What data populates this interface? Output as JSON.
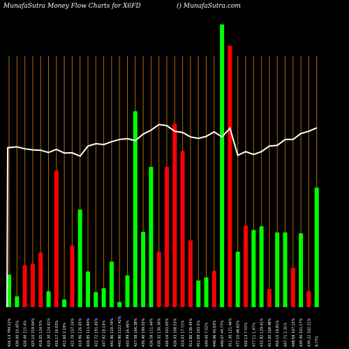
{
  "header": {
    "title": "MunafaSutra  Money Flow  Charts for X6FD",
    "site": "() MunafaSutra.com"
  },
  "chart_data": {
    "type": "bar",
    "title": "MunafaSutra  Money Flow  Charts for X6FD",
    "ylim": [
      0,
      100
    ],
    "grid": true,
    "series": [
      {
        "values": [
          11.5,
          3.8,
          14.8,
          15.4,
          19.3,
          5.6,
          48.3,
          2.7,
          21.7,
          34.5,
          12.6,
          5.3,
          6.7,
          16.1,
          1.8,
          11.2,
          69.3,
          26.6,
          49.6,
          19.6,
          49.6,
          64.8,
          55.2,
          23.6,
          9.4,
          10.5,
          12.8,
          100,
          92.5,
          19.6,
          28.8,
          27.3,
          28.6,
          6.4,
          26.4,
          26.4,
          13.9,
          26.1,
          5.6,
          42.3
        ],
        "colors": [
          "green",
          "green",
          "red",
          "red",
          "red",
          "green",
          "red",
          "green",
          "red",
          "green",
          "green",
          "green",
          "green",
          "green",
          "green",
          "green",
          "green",
          "green",
          "green",
          "red",
          "red",
          "red",
          "red",
          "red",
          "green",
          "green",
          "red",
          "green",
          "red",
          "green",
          "red",
          "green",
          "green",
          "red",
          "green",
          "green",
          "red",
          "green",
          "red",
          "green"
        ]
      },
      {
        "name": "",
        "values": [
          56.4,
          56.7,
          56.0,
          55.6,
          55.5,
          54.7,
          55.8,
          54.5,
          54.6,
          53.4,
          57.0,
          57.8,
          57.5,
          58.5,
          59.3,
          59.6,
          58.9,
          61.2,
          62.6,
          64.6,
          64.2,
          62.2,
          61.8,
          60.2,
          59.7,
          60.4,
          62.0,
          60.2,
          63.3,
          53.7,
          55.0,
          54.0,
          55.0,
          57.0,
          57.2,
          59.3,
          59.3,
          61.4,
          62.2,
          63.4
        ]
      }
    ],
    "categories": [
      "426.13  794.22%",
      "430.00  10.45%",
      "426.40  115.4%",
      "425.10  219.04%",
      "418.05  124.5%",
      "420.30  124.42%",
      "420.17  18.03%",
      "412.60  2.19%",
      "421.70  157.24%",
      "418.96  126.05%",
      "426.95  111.84%",
      "422.72  191.45%",
      "437.92  18.14%",
      "441.96  110.74%",
      "443.90  1122.42%",
      "443.99  16.46%",
      "427.58  166.38%",
      "430.40  199.55%",
      "426.58  111.44%",
      "430.32  130.36%",
      "426.16  101.05%",
      "426.43  168.53%",
      "414.03  17.72%",
      "412.80  136.45%",
      "411.69  103.5%",
      "449.00  7.52%",
      "440.96  43.03%",
      "440.07  44.77%",
      "411.30  121.46%",
      "477.10  48.82%",
      "420.13  7.51%",
      "477.11  1.47%",
      "432.82  129.41%",
      "417.00  168.48%",
      "450.15  19.81%",
      "447.71  2.31%",
      "448.59  107.15%",
      "430.30  101.17%",
      "430.22  102.21%",
      "9.77%"
    ]
  }
}
